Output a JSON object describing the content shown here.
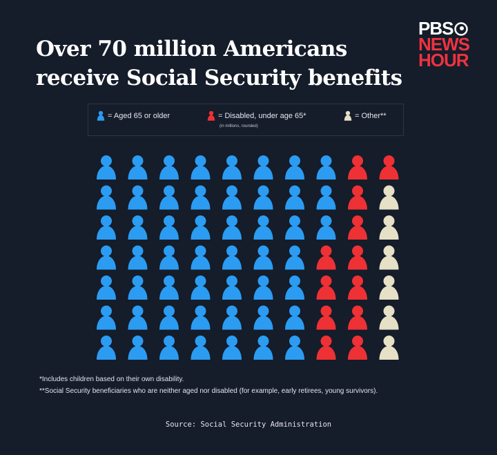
{
  "title": "Over 70 million Americans receive Social Security benefits",
  "logo": {
    "line1": "PBS",
    "line2": "NEWS",
    "line3": "HOUR"
  },
  "legend": {
    "aged": "= Aged 65 or older",
    "disabled": "= Disabled, under age 65*",
    "other": "= Other**",
    "note": "(in millions, rounded)"
  },
  "colors": {
    "aged": "#2b9cf2",
    "disabled": "#ee3135",
    "other": "#e6e0c6",
    "background": "#151c2a"
  },
  "chart_data": {
    "type": "pictogram",
    "unit": "1 icon = 1 million beneficiaries",
    "categories": [
      "Aged 65 or older",
      "Disabled, under age 65*",
      "Other**"
    ],
    "values": [
      52,
      12,
      6
    ],
    "grid_rows": [
      [
        "aged",
        "aged",
        "aged",
        "aged",
        "aged",
        "aged",
        "aged",
        "aged",
        "disabled",
        "disabled"
      ],
      [
        "aged",
        "aged",
        "aged",
        "aged",
        "aged",
        "aged",
        "aged",
        "aged",
        "disabled",
        "other"
      ],
      [
        "aged",
        "aged",
        "aged",
        "aged",
        "aged",
        "aged",
        "aged",
        "aged",
        "disabled",
        "other"
      ],
      [
        "aged",
        "aged",
        "aged",
        "aged",
        "aged",
        "aged",
        "aged",
        "disabled",
        "disabled",
        "other"
      ],
      [
        "aged",
        "aged",
        "aged",
        "aged",
        "aged",
        "aged",
        "aged",
        "disabled",
        "disabled",
        "other"
      ],
      [
        "aged",
        "aged",
        "aged",
        "aged",
        "aged",
        "aged",
        "aged",
        "disabled",
        "disabled",
        "other"
      ],
      [
        "aged",
        "aged",
        "aged",
        "aged",
        "aged",
        "aged",
        "aged",
        "disabled",
        "disabled",
        "other"
      ]
    ]
  },
  "footnotes": [
    "*Includes children based on their own disability.",
    "**Social Security beneficiaries who are neither aged nor disabled (for example, early retirees, young survivors)."
  ],
  "source": "Source: Social Security Administration"
}
